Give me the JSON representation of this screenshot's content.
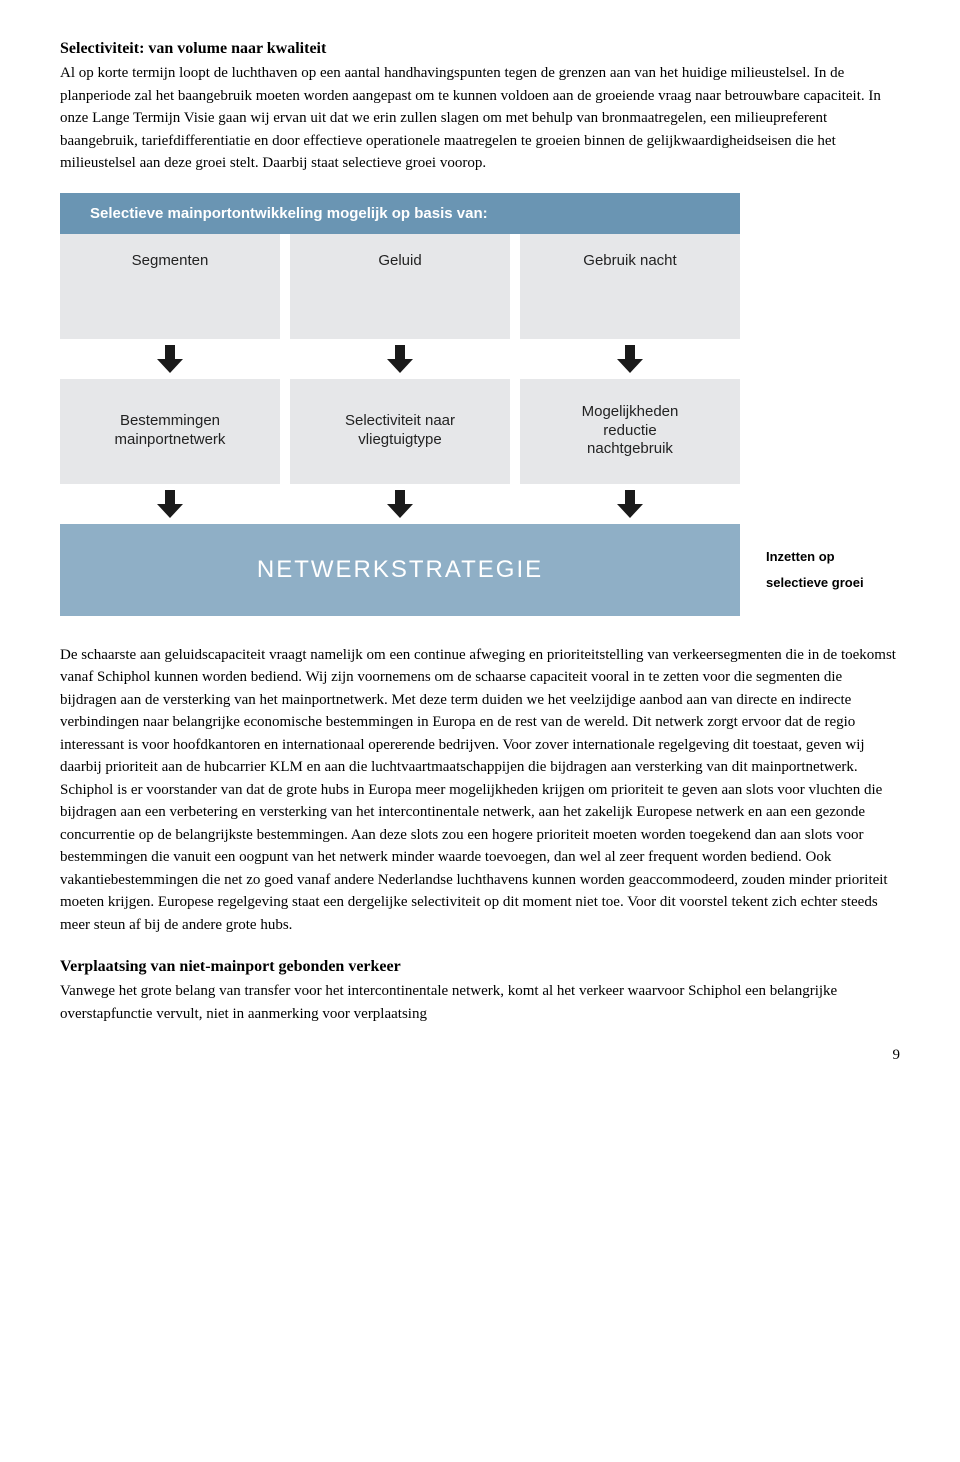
{
  "section1": {
    "title": "Selectiviteit: van volume naar kwaliteit",
    "body": "Al op korte termijn loopt de luchthaven op een aantal handhavingspunten tegen de grenzen aan van het huidige milieustelsel. In de planperiode zal het baangebruik moeten worden aangepast om te kunnen voldoen aan de groeiende vraag naar betrouwbare capaciteit. In onze Lange Termijn Visie gaan wij ervan uit dat we erin zullen slagen om met behulp van bronmaatregelen, een milieupreferent baangebruik, tariefdifferentiatie en door effectieve operationele maatregelen te groeien binnen de gelijkwaardigheidseisen die het milieustelsel aan deze groei stelt. Daarbij staat selectieve groei voorop."
  },
  "diagram": {
    "header": "Selectieve mainportontwikkeling mogelijk op basis van:",
    "row1": [
      "Segmenten",
      "Geluid",
      "Gebruik nacht"
    ],
    "row2": [
      "Bestemmingen\nmainportnetwerk",
      "Selectiviteit naar\nvliegtuigtype",
      "Mogelijkheden\nreductie\nnachtgebruik"
    ],
    "strategy": "NETWERKSTRATEGIE",
    "side_label_top": "Inzetten op",
    "side_label_bottom": "selectieve groei",
    "colors": {
      "header_bg": "#6a95b3",
      "tile_bg": "#e6e7e9",
      "strategy_bg": "#8fafc6",
      "arrow_fill": "#1a1a1a"
    }
  },
  "section2_body": "De schaarste aan geluidscapaciteit vraagt namelijk om een continue afweging en prioriteitstelling van verkeersegmenten die in de toekomst vanaf Schiphol kunnen worden bediend. Wij zijn voornemens om de schaarse capaciteit vooral in te zetten voor die segmenten die bijdragen aan de versterking van het mainportnetwerk. Met deze term duiden we het veelzijdige aanbod aan van directe en indirecte verbindingen naar belangrijke economische bestemmingen in Europa en de rest van de wereld. Dit netwerk zorgt ervoor dat de regio interessant is voor hoofdkantoren en internationaal opererende bedrijven. Voor zover internationale regelgeving dit toestaat, geven wij daarbij prioriteit aan de hubcarrier KLM en aan die luchtvaartmaatschappijen die bijdragen aan versterking van dit mainportnetwerk. Schiphol is er voorstander van dat de grote hubs in Europa meer mogelijkheden krijgen om prioriteit te geven aan slots voor vluchten die bijdragen aan een verbetering en versterking van het intercontinentale netwerk, aan het zakelijk Europese netwerk en aan een gezonde concurrentie op de belangrijkste bestemmingen. Aan deze slots zou een hogere prioriteit moeten worden toegekend dan aan slots voor bestemmingen die vanuit een oogpunt van het netwerk minder waarde toevoegen, dan wel al zeer frequent worden bediend. Ook vakantiebestemmingen die net zo goed vanaf andere Nederlandse luchthavens kunnen worden geaccommodeerd, zouden minder prioriteit moeten krijgen. Europese regelgeving staat een dergelijke selectiviteit op dit moment niet toe. Voor dit voorstel tekent zich echter steeds meer steun af bij de andere grote hubs.",
  "section3": {
    "title": "Verplaatsing van niet-mainport gebonden verkeer",
    "body": "Vanwege het grote belang van transfer voor het intercontinentale netwerk, komt al het verkeer waarvoor Schiphol een belangrijke overstapfunctie vervult, niet in aanmerking voor verplaatsing"
  },
  "page_number": "9"
}
